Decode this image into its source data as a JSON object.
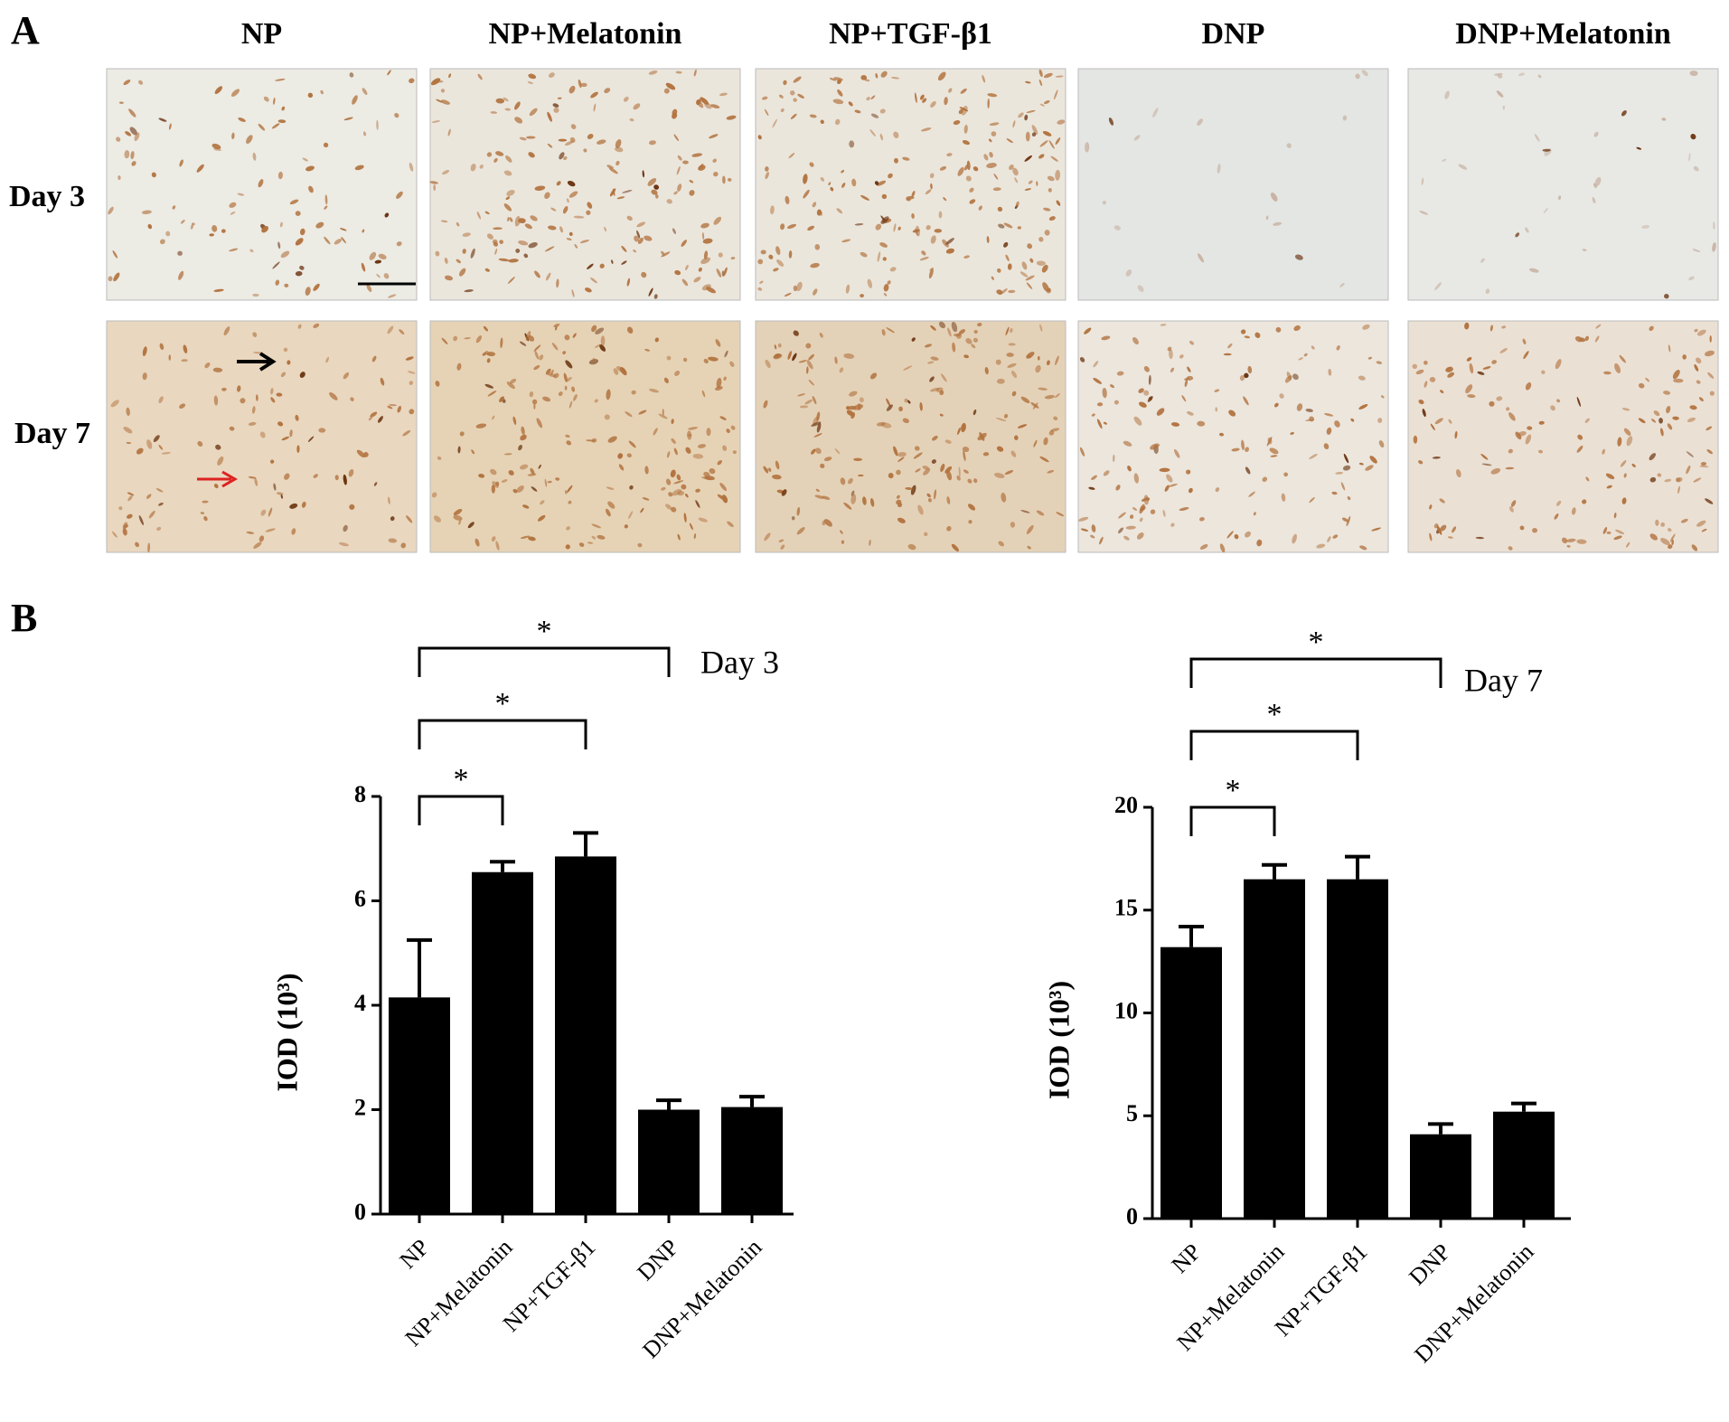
{
  "panel_a": {
    "label": "A",
    "columns": [
      "NP",
      "NP+Melatonin",
      "NP+TGF-β1",
      "DNP",
      "DNP+Melatonin"
    ],
    "rows": [
      "Day 3",
      "Day 7"
    ]
  },
  "panel_b": {
    "label": "B"
  },
  "chart_data": [
    {
      "type": "bar",
      "title": "Day 3",
      "y_label": "IOD (10³)",
      "categories": [
        "NP",
        "NP+Melatonin",
        "NP+TGF-β1",
        "DNP",
        "DNP+Melatonin"
      ],
      "values": [
        4.15,
        6.55,
        6.85,
        2.0,
        2.05
      ],
      "errors": [
        1.1,
        0.2,
        0.45,
        0.18,
        0.2
      ],
      "color": "#000000",
      "ylim": [
        0,
        8
      ],
      "yticks": [
        0,
        2,
        4,
        6,
        8
      ],
      "significance": [
        {
          "label": "*"
        },
        {
          "label": "*"
        },
        {
          "label": "*"
        }
      ]
    },
    {
      "type": "bar",
      "title": "Day 7",
      "y_label": "IOD (10³)",
      "categories": [
        "NP",
        "NP+Melatonin",
        "NP+TGF-β1",
        "DNP",
        "DNP+Melatonin"
      ],
      "values": [
        13.2,
        16.5,
        16.5,
        4.1,
        5.2
      ],
      "errors": [
        1.0,
        0.7,
        1.1,
        0.5,
        0.4
      ],
      "color": "#000000",
      "ylim": [
        0,
        20
      ],
      "yticks": [
        0,
        5,
        10,
        15,
        20
      ],
      "significance": [
        {
          "label": "*"
        },
        {
          "label": "*"
        },
        {
          "label": "*"
        }
      ]
    }
  ]
}
